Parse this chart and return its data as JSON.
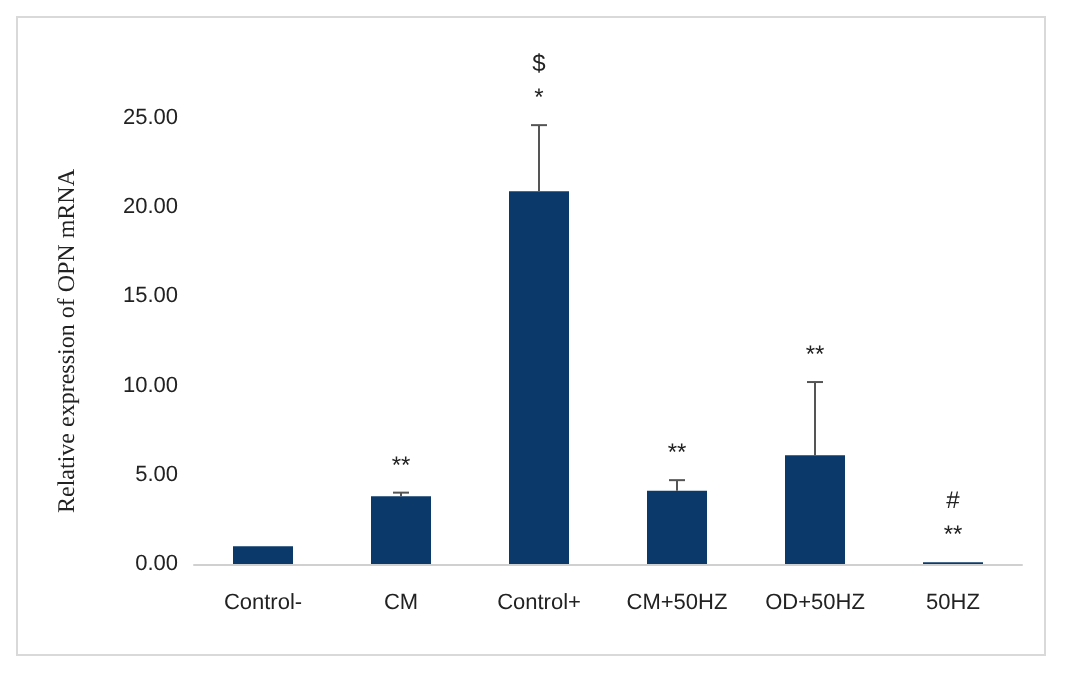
{
  "chart_data": {
    "type": "bar",
    "ylabel": "Relative expression of OPN mRNA",
    "categories": [
      "Control-",
      "CM",
      "Control+",
      "CM+50HZ",
      "OD+50HZ",
      "50HZ"
    ],
    "values": [
      1.0,
      3.8,
      20.9,
      4.1,
      6.1,
      0.1
    ],
    "errors": [
      null,
      [
        3.8,
        4.0
      ],
      [
        20.9,
        24.6
      ],
      [
        4.1,
        4.7
      ],
      [
        6.1,
        10.2
      ],
      null
    ],
    "color": "#0b3a6a",
    "ylim": [
      0,
      25
    ],
    "yticks": [
      {
        "value": 0,
        "label": "0.00"
      },
      {
        "value": 5,
        "label": "5.00"
      },
      {
        "value": 10,
        "label": "10.00"
      },
      {
        "value": 15,
        "label": "15.00"
      },
      {
        "value": 20,
        "label": "20.00"
      },
      {
        "value": 25,
        "label": "25.00"
      }
    ],
    "grid": false,
    "annotations": [
      "**",
      "*",
      "$",
      "**",
      "**",
      "**",
      "#"
    ]
  }
}
